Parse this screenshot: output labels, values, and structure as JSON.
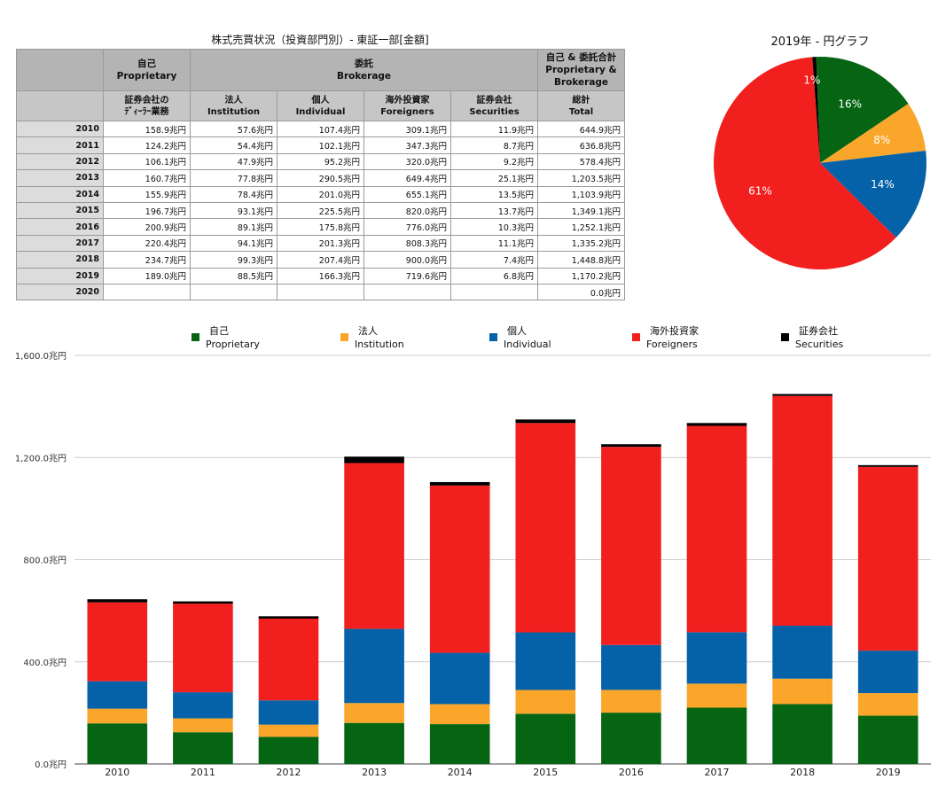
{
  "table": {
    "title": "株式売買状況（投資部門別）- 東証一部[金額]",
    "header1": {
      "proprietary": [
        "自己",
        "Proprietary"
      ],
      "brokerage": [
        "委託",
        "Brokerage"
      ],
      "total": [
        "自己 & 委託合計",
        "Proprietary &",
        "Brokerage"
      ]
    },
    "header2": {
      "proprietary": [
        "証券会社の",
        "ﾃﾞｨｰﾗｰ業務"
      ],
      "institution": [
        "法人",
        "Institution"
      ],
      "individual": [
        "個人",
        "Individual"
      ],
      "foreigners": [
        "海外投資家",
        "Foreigners"
      ],
      "securities": [
        "証券会社",
        "Securities"
      ],
      "total": [
        "総計",
        "Total"
      ]
    },
    "rows": [
      {
        "year": "2010",
        "cells": [
          "158.9兆円",
          "57.6兆円",
          "107.4兆円",
          "309.1兆円",
          "11.9兆円",
          "644.9兆円"
        ]
      },
      {
        "year": "2011",
        "cells": [
          "124.2兆円",
          "54.4兆円",
          "102.1兆円",
          "347.3兆円",
          "8.7兆円",
          "636.8兆円"
        ]
      },
      {
        "year": "2012",
        "cells": [
          "106.1兆円",
          "47.9兆円",
          "95.2兆円",
          "320.0兆円",
          "9.2兆円",
          "578.4兆円"
        ]
      },
      {
        "year": "2013",
        "cells": [
          "160.7兆円",
          "77.8兆円",
          "290.5兆円",
          "649.4兆円",
          "25.1兆円",
          "1,203.5兆円"
        ]
      },
      {
        "year": "2014",
        "cells": [
          "155.9兆円",
          "78.4兆円",
          "201.0兆円",
          "655.1兆円",
          "13.5兆円",
          "1,103.9兆円"
        ]
      },
      {
        "year": "2015",
        "cells": [
          "196.7兆円",
          "93.1兆円",
          "225.5兆円",
          "820.0兆円",
          "13.7兆円",
          "1,349.1兆円"
        ]
      },
      {
        "year": "2016",
        "cells": [
          "200.9兆円",
          "89.1兆円",
          "175.8兆円",
          "776.0兆円",
          "10.3兆円",
          "1,252.1兆円"
        ]
      },
      {
        "year": "2017",
        "cells": [
          "220.4兆円",
          "94.1兆円",
          "201.3兆円",
          "808.3兆円",
          "11.1兆円",
          "1,335.2兆円"
        ]
      },
      {
        "year": "2018",
        "cells": [
          "234.7兆円",
          "99.3兆円",
          "207.4兆円",
          "900.0兆円",
          "7.4兆円",
          "1,448.8兆円"
        ]
      },
      {
        "year": "2019",
        "cells": [
          "189.0兆円",
          "88.5兆円",
          "166.3兆円",
          "719.6兆円",
          "6.8兆円",
          "1,170.2兆円"
        ]
      },
      {
        "year": "2020",
        "cells": [
          "",
          "",
          "",
          "",
          "",
          "0.0兆円"
        ]
      }
    ]
  },
  "chart_data": [
    {
      "type": "pie",
      "title": "2019年 - 円グラフ",
      "slices": [
        {
          "name": "自己 Proprietary",
          "value": 189.0,
          "label": "16%",
          "color": "#056513"
        },
        {
          "name": "法人 Institution",
          "value": 88.5,
          "label": "8%",
          "color": "#faa62a"
        },
        {
          "name": "個人 Individual",
          "value": 166.3,
          "label": "14%",
          "color": "#0562a8"
        },
        {
          "name": "海外投資家 Foreigners",
          "value": 719.6,
          "label": "61%",
          "color": "#f21f1f"
        },
        {
          "name": "証券会社 Securities",
          "value": 6.8,
          "label": "1%",
          "color": "#000000"
        }
      ]
    },
    {
      "type": "bar",
      "stacked": true,
      "categories": [
        "2010",
        "2011",
        "2012",
        "2013",
        "2014",
        "2015",
        "2016",
        "2017",
        "2018",
        "2019"
      ],
      "ylim": [
        0,
        1600
      ],
      "yticks": [
        0,
        400,
        800,
        1200,
        1600
      ],
      "ytick_labels": [
        "0.0兆円",
        "400.0兆円",
        "800.0兆円",
        "1,200.0兆円",
        "1,600.0兆円"
      ],
      "grid": true,
      "legend_position": "top",
      "series": [
        {
          "name": "自己",
          "name_en": "Proprietary",
          "color": "#056513",
          "values": [
            158.9,
            124.2,
            106.1,
            160.7,
            155.9,
            196.7,
            200.9,
            220.4,
            234.7,
            189.0
          ]
        },
        {
          "name": "法人",
          "name_en": "Institution",
          "color": "#faa62a",
          "values": [
            57.6,
            54.4,
            47.9,
            77.8,
            78.4,
            93.1,
            89.1,
            94.1,
            99.3,
            88.5
          ]
        },
        {
          "name": "個人",
          "name_en": "Individual",
          "color": "#0562a8",
          "values": [
            107.4,
            102.1,
            95.2,
            290.5,
            201.0,
            225.5,
            175.8,
            201.3,
            207.4,
            166.3
          ]
        },
        {
          "name": "海外投資家",
          "name_en": "Foreigners",
          "color": "#f21f1f",
          "values": [
            309.1,
            347.3,
            320.0,
            649.4,
            655.1,
            820.0,
            776.0,
            808.3,
            900.0,
            719.6
          ]
        },
        {
          "name": "証券会社",
          "name_en": "Securities",
          "color": "#000000",
          "values": [
            11.9,
            8.7,
            9.2,
            25.1,
            13.5,
            13.7,
            10.3,
            11.1,
            7.4,
            6.8
          ]
        }
      ]
    }
  ]
}
